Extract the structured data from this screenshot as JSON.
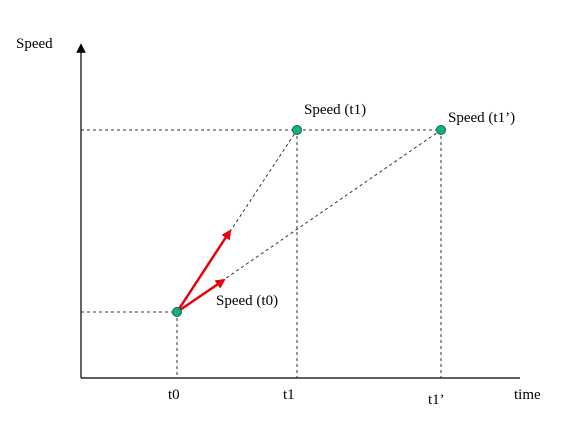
{
  "axes": {
    "y_label": "Speed",
    "x_label": "time",
    "x_ticks": [
      "t0",
      "t1",
      "t1’"
    ]
  },
  "points": {
    "p0_label": "Speed (t0)",
    "p1_label": "Speed (t1)",
    "p2_label": "Speed (t1’)"
  },
  "colors": {
    "point_fill": "#18b07a",
    "point_stroke": "#0a6a45",
    "arrow": "#e8000b"
  }
}
